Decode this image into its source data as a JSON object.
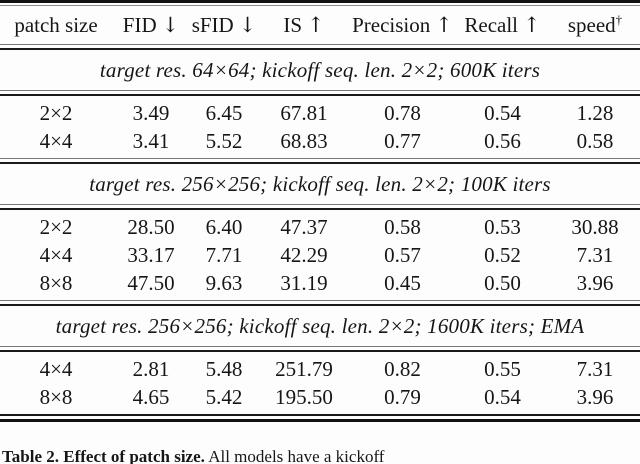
{
  "colors": {
    "background": "#fdfdfd",
    "text": "#161616",
    "rule": "#1a1a1a"
  },
  "table": {
    "header": [
      {
        "label": "patch size",
        "suffix": ""
      },
      {
        "label": "FID",
        "suffix": "↓"
      },
      {
        "label": "sFID",
        "suffix": "↓"
      },
      {
        "label": "IS",
        "suffix": "↑"
      },
      {
        "label": "Precision",
        "suffix": "↑"
      },
      {
        "label": "Recall",
        "suffix": "↑"
      },
      {
        "label": "speed",
        "suffix": "†"
      }
    ],
    "sections": [
      {
        "title": "target res. 64×64; kickoff seq. len. 2×2; 600K iters",
        "rows": [
          [
            "2×2",
            "3.49",
            "6.45",
            "67.81",
            "0.78",
            "0.54",
            "1.28"
          ],
          [
            "4×4",
            "3.41",
            "5.52",
            "68.83",
            "0.77",
            "0.56",
            "0.58"
          ]
        ]
      },
      {
        "title": "target res. 256×256; kickoff seq. len. 2×2; 100K iters",
        "rows": [
          [
            "2×2",
            "28.50",
            "6.40",
            "47.37",
            "0.58",
            "0.53",
            "30.88"
          ],
          [
            "4×4",
            "33.17",
            "7.71",
            "42.29",
            "0.57",
            "0.52",
            "7.31"
          ],
          [
            "8×8",
            "47.50",
            "9.63",
            "31.19",
            "0.45",
            "0.50",
            "3.96"
          ]
        ]
      },
      {
        "title": "target res. 256×256; kickoff seq. len. 2×2; 1600K iters; EMA",
        "rows": [
          [
            "4×4",
            "2.81",
            "5.48",
            "251.79",
            "0.82",
            "0.55",
            "7.31"
          ],
          [
            "8×8",
            "4.65",
            "5.42",
            "195.50",
            "0.79",
            "0.54",
            "3.96"
          ]
        ]
      }
    ]
  },
  "caption": {
    "label": "Table 2.",
    "title": "Effect of patch size.",
    "text": "All models have a kickoff"
  }
}
